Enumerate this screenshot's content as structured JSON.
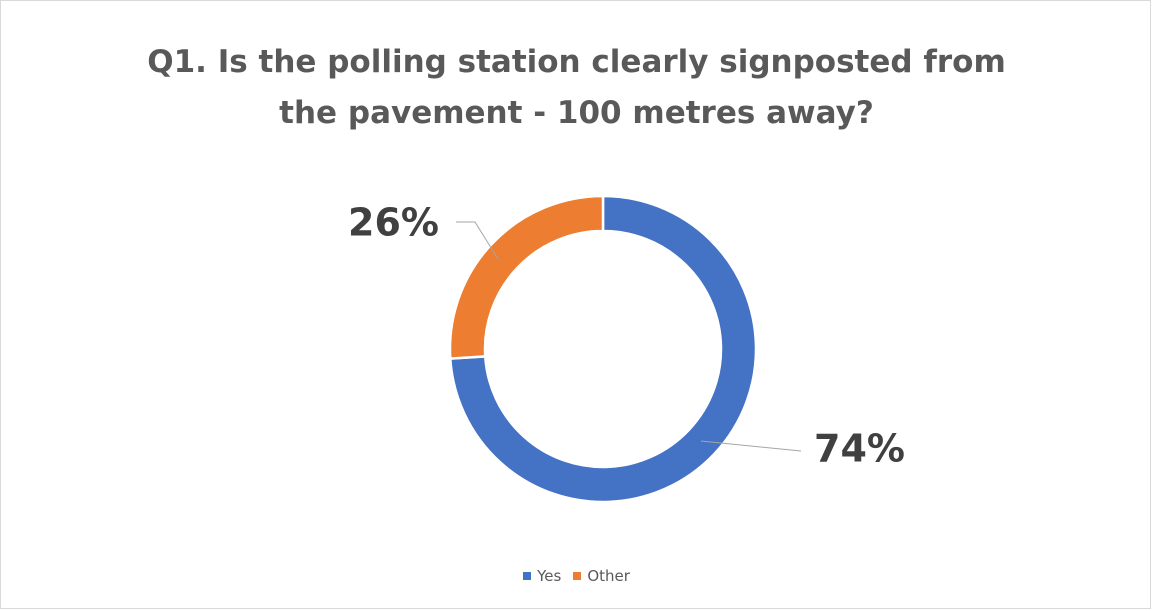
{
  "chart_data": {
    "type": "pie",
    "variant": "doughnut",
    "title_lines": [
      "Q1. Is the polling station clearly signposted from",
      "the pavement - 100 metres away?"
    ],
    "categories": [
      "Yes",
      "Other"
    ],
    "values": [
      74,
      26
    ],
    "data_labels": [
      "74%",
      "26%"
    ],
    "colors": [
      "#4472c4",
      "#ed7d31"
    ],
    "legend_position": "bottom",
    "start_angle_deg": 0,
    "direction": "clockwise"
  },
  "legend": {
    "items": [
      {
        "label": "Yes",
        "color": "#4472c4"
      },
      {
        "label": "Other",
        "color": "#ed7d31"
      }
    ]
  }
}
